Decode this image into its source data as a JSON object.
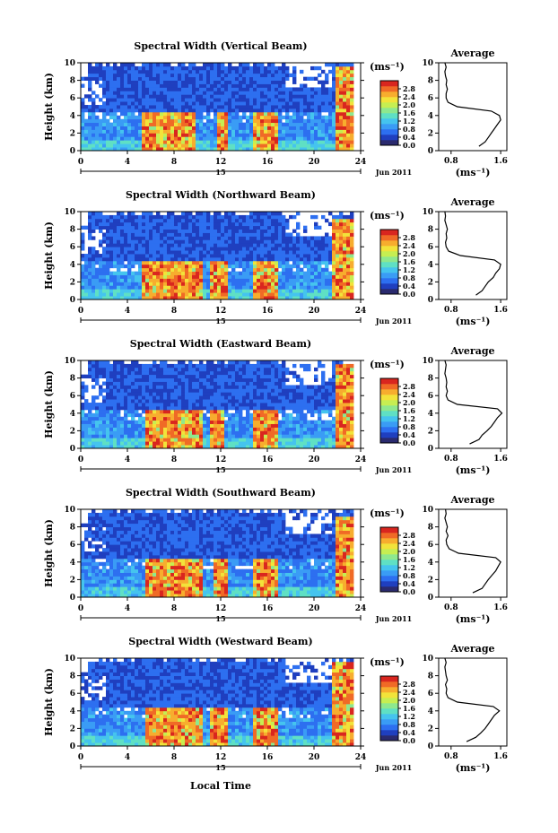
{
  "figure": {
    "xlabel": "Local Time",
    "date_label": "Jun 2011",
    "day_label": "15",
    "cbar_unit": "(ms⁻¹)",
    "avg_title": "Average",
    "avg_xlabel": "(ms⁻¹)",
    "ylabel": "Height (km)",
    "colors": [
      "#2a2a6e",
      "#1f3fbf",
      "#2d6ff0",
      "#3a9cf5",
      "#45c4ee",
      "#5fe0c4",
      "#8ee88e",
      "#c6ee52",
      "#f2e33a",
      "#f7ad2e",
      "#f06a26",
      "#d9261f"
    ]
  },
  "chart_data": [
    {
      "type": "heatmap",
      "title": "Spectral Width (Vertical Beam)",
      "x_range": [
        0,
        24
      ],
      "x_ticks": [
        0,
        4,
        8,
        12,
        16,
        20,
        24
      ],
      "y_range": [
        0,
        10
      ],
      "y_ticks": [
        0,
        2,
        4,
        6,
        8,
        10
      ],
      "colorbar_ticks": [
        0.0,
        0.4,
        0.8,
        1.2,
        1.6,
        2.0,
        2.4,
        2.8
      ],
      "colorbar_range": [
        0,
        3.2
      ],
      "high_regions": [
        {
          "t0": 5.2,
          "t1": 9.8,
          "h1": 4.5
        },
        {
          "t0": 11.8,
          "t1": 12.6,
          "h1": 4.5
        },
        {
          "t0": 14.8,
          "t1": 17.0,
          "h1": 4.5
        },
        {
          "t0": 21.8,
          "t1": 23.4,
          "h1": 9.5
        }
      ],
      "average_profile": {
        "x_ticks": [
          0.8,
          1.6
        ],
        "x_range": [
          0.6,
          1.7
        ],
        "y_range": [
          0,
          10
        ],
        "width": [
          1.25,
          1.35,
          1.4,
          1.45,
          1.5,
          1.55,
          1.6,
          1.58,
          1.45,
          0.9,
          0.75,
          0.72,
          0.72,
          0.74,
          0.72,
          0.73,
          0.71,
          0.7,
          0.72,
          0.7
        ],
        "height": [
          0.5,
          1.0,
          1.5,
          2.0,
          2.5,
          3.0,
          3.5,
          4.0,
          4.5,
          5.0,
          5.5,
          6.0,
          6.5,
          7.0,
          7.5,
          8.0,
          8.5,
          9.0,
          9.5,
          10.0
        ]
      }
    },
    {
      "type": "heatmap",
      "title": "Spectral Width (Northward Beam)",
      "x_range": [
        0,
        24
      ],
      "x_ticks": [
        0,
        4,
        8,
        12,
        16,
        20,
        24
      ],
      "y_range": [
        0,
        10
      ],
      "y_ticks": [
        0,
        2,
        4,
        6,
        8,
        10
      ],
      "colorbar_ticks": [
        0.0,
        0.4,
        0.8,
        1.2,
        1.6,
        2.0,
        2.4,
        2.8
      ],
      "colorbar_range": [
        0,
        3.2
      ],
      "high_regions": [
        {
          "t0": 5.2,
          "t1": 10.5,
          "h1": 4.5
        },
        {
          "t0": 11.2,
          "t1": 12.6,
          "h1": 4.5
        },
        {
          "t0": 14.8,
          "t1": 17.0,
          "h1": 4.5
        },
        {
          "t0": 21.6,
          "t1": 23.4,
          "h1": 9.0
        }
      ],
      "average_profile": {
        "x_ticks": [
          0.8,
          1.6
        ],
        "x_range": [
          0.6,
          1.7
        ],
        "y_range": [
          0,
          10
        ],
        "width": [
          1.2,
          1.3,
          1.35,
          1.4,
          1.48,
          1.52,
          1.58,
          1.6,
          1.5,
          0.95,
          0.76,
          0.72,
          0.71,
          0.73,
          0.72,
          0.74,
          0.72,
          0.7,
          0.71,
          0.7
        ],
        "height": [
          0.5,
          1.0,
          1.5,
          2.0,
          2.5,
          3.0,
          3.5,
          4.0,
          4.5,
          5.0,
          5.5,
          6.0,
          6.5,
          7.0,
          7.5,
          8.0,
          8.5,
          9.0,
          9.5,
          10.0
        ]
      }
    },
    {
      "type": "heatmap",
      "title": "Spectral Width (Eastward Beam)",
      "x_range": [
        0,
        24
      ],
      "x_ticks": [
        0,
        4,
        8,
        12,
        16,
        20,
        24
      ],
      "y_range": [
        0,
        10
      ],
      "y_ticks": [
        0,
        2,
        4,
        6,
        8,
        10
      ],
      "colorbar_ticks": [
        0.0,
        0.4,
        0.8,
        1.2,
        1.6,
        2.0,
        2.4,
        2.8
      ],
      "colorbar_range": [
        0,
        3.2
      ],
      "high_regions": [
        {
          "t0": 5.4,
          "t1": 10.4,
          "h1": 4.5
        },
        {
          "t0": 11.2,
          "t1": 12.4,
          "h1": 4.5
        },
        {
          "t0": 14.8,
          "t1": 17.0,
          "h1": 4.5
        },
        {
          "t0": 21.8,
          "t1": 23.4,
          "h1": 9.5
        }
      ],
      "average_profile": {
        "x_ticks": [
          0.8,
          1.6
        ],
        "x_range": [
          0.6,
          1.7
        ],
        "y_range": [
          0,
          10
        ],
        "width": [
          1.1,
          1.25,
          1.3,
          1.38,
          1.45,
          1.5,
          1.55,
          1.62,
          1.55,
          0.9,
          0.75,
          0.72,
          0.74,
          0.72,
          0.73,
          0.72,
          0.7,
          0.71,
          0.72,
          0.7
        ],
        "height": [
          0.5,
          1.0,
          1.5,
          2.0,
          2.5,
          3.0,
          3.5,
          4.0,
          4.5,
          5.0,
          5.5,
          6.0,
          6.5,
          7.0,
          7.5,
          8.0,
          8.5,
          9.0,
          9.5,
          10.0
        ]
      }
    },
    {
      "type": "heatmap",
      "title": "Spectral Width (Southward Beam)",
      "x_range": [
        0,
        24
      ],
      "x_ticks": [
        0,
        4,
        8,
        12,
        16,
        20,
        24
      ],
      "y_range": [
        0,
        10
      ],
      "y_ticks": [
        0,
        2,
        4,
        6,
        8,
        10
      ],
      "colorbar_ticks": [
        0.0,
        0.4,
        0.8,
        1.2,
        1.6,
        2.0,
        2.4,
        2.8
      ],
      "colorbar_range": [
        0,
        3.2
      ],
      "high_regions": [
        {
          "t0": 5.6,
          "t1": 10.4,
          "h1": 4.5
        },
        {
          "t0": 11.4,
          "t1": 12.6,
          "h1": 4.5
        },
        {
          "t0": 14.8,
          "t1": 17.0,
          "h1": 4.5
        },
        {
          "t0": 21.8,
          "t1": 23.4,
          "h1": 9.0
        }
      ],
      "average_profile": {
        "x_ticks": [
          0.8,
          1.6
        ],
        "x_range": [
          0.6,
          1.7
        ],
        "y_range": [
          0,
          10
        ],
        "width": [
          1.15,
          1.3,
          1.35,
          1.4,
          1.46,
          1.52,
          1.56,
          1.6,
          1.52,
          0.92,
          0.77,
          0.73,
          0.72,
          0.75,
          0.72,
          0.74,
          0.72,
          0.7,
          0.72,
          0.71
        ],
        "height": [
          0.5,
          1.0,
          1.5,
          2.0,
          2.5,
          3.0,
          3.5,
          4.0,
          4.5,
          5.0,
          5.5,
          6.0,
          6.5,
          7.0,
          7.5,
          8.0,
          8.5,
          9.0,
          9.5,
          10.0
        ]
      }
    },
    {
      "type": "heatmap",
      "title": "Spectral Width (Westward Beam)",
      "x_range": [
        0,
        24
      ],
      "x_ticks": [
        0,
        4,
        8,
        12,
        16,
        20,
        24
      ],
      "y_range": [
        0,
        10
      ],
      "y_ticks": [
        0,
        2,
        4,
        6,
        8,
        10
      ],
      "colorbar_ticks": [
        0.0,
        0.4,
        0.8,
        1.2,
        1.6,
        2.0,
        2.4,
        2.8
      ],
      "colorbar_range": [
        0,
        3.2
      ],
      "high_regions": [
        {
          "t0": 5.4,
          "t1": 10.4,
          "h1": 4.5
        },
        {
          "t0": 11.2,
          "t1": 12.6,
          "h1": 4.5
        },
        {
          "t0": 14.8,
          "t1": 17.0,
          "h1": 4.5
        },
        {
          "t0": 21.6,
          "t1": 23.4,
          "h1": 9.5
        }
      ],
      "average_profile": {
        "x_ticks": [
          0.8,
          1.6
        ],
        "x_range": [
          0.6,
          1.7
        ],
        "y_range": [
          0,
          10
        ],
        "width": [
          1.05,
          1.2,
          1.28,
          1.35,
          1.4,
          1.45,
          1.5,
          1.58,
          1.48,
          0.9,
          0.75,
          0.72,
          0.73,
          0.71,
          0.74,
          0.72,
          0.71,
          0.7,
          0.72,
          0.7
        ],
        "height": [
          0.5,
          1.0,
          1.5,
          2.0,
          2.5,
          3.0,
          3.5,
          4.0,
          4.5,
          5.0,
          5.5,
          6.0,
          6.5,
          7.0,
          7.5,
          8.0,
          8.5,
          9.0,
          9.5,
          10.0
        ]
      }
    }
  ]
}
